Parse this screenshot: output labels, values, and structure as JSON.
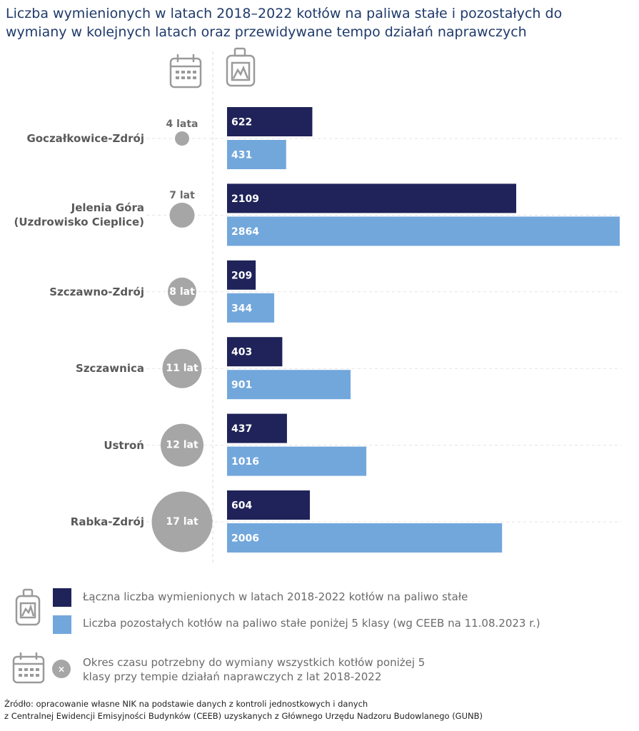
{
  "chart_data": {
    "type": "bar",
    "title": "Liczba wymienionych w latach 2018–2022 kotłów na paliwa stałe i pozostałych do wymiany w kolejnych latach oraz przewidywane tempo działań naprawczych",
    "categories": [
      "Goczałkowice-Zdrój",
      "Jelenia Góra\n(Uzdrowisko Cieplice)",
      "Szczawno-Zdrój",
      "Szczawnica",
      "Ustroń",
      "Rabka-Zdrój"
    ],
    "series": [
      {
        "name": "Łączna liczba wymienionych w latach 2018-2022 kotłów na paliwo stałe",
        "color": "#1f2359",
        "values": [
          622,
          2109,
          209,
          403,
          437,
          604
        ]
      },
      {
        "name": "Liczba pozostałych kotłów na paliwo stałe poniżej 5 klasy (wg CEEB na 11.08.2023 r.)",
        "color": "#72a7dc",
        "values": [
          431,
          2864,
          344,
          901,
          1016,
          2006
        ]
      }
    ],
    "durations": {
      "name": "Okres czasu potrzebny do wymiany wszystkich kotłów poniżej 5 klasy przy tempie działań naprawczych z lat 2018-2022",
      "color": "#a6a6a6",
      "values": [
        4,
        7,
        8,
        11,
        12,
        17
      ],
      "value_labels": [
        "4 lata",
        "7 lat",
        "8 lat",
        "11 lat",
        "12 lat",
        "17 lat"
      ]
    },
    "source": "Źródło: opracowanie własne NIK na podstawie danych z kontroli jednostkowych i danych\nz Centralnej Ewidencji Emisyjności Budynków (CEEB) uzyskanych z Głównego Urzędu Nadzoru Budowlanego (GUNB)"
  }
}
